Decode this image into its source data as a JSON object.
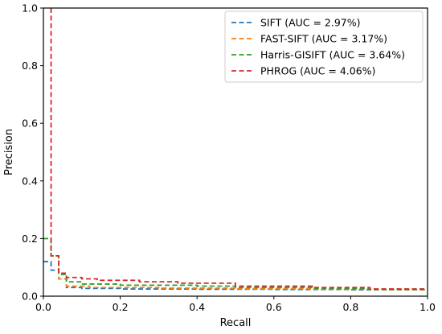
{
  "chart_data": {
    "type": "line",
    "title": "",
    "xlabel": "Recall",
    "ylabel": "Precision",
    "xlim": [
      0.0,
      1.0
    ],
    "ylim": [
      0.0,
      1.0
    ],
    "xticks": [
      "0.0",
      "0.2",
      "0.4",
      "0.6",
      "0.8",
      "1.0"
    ],
    "yticks": [
      "0.0",
      "0.2",
      "0.4",
      "0.6",
      "0.8",
      "1.0"
    ],
    "grid": false,
    "legend_position": "top-right",
    "line_style": "dashed",
    "series": [
      {
        "name": "SIFT (AUC = 2.97%)",
        "color": "#1f77b4",
        "points": [
          [
            0.0,
            0.12
          ],
          [
            0.02,
            0.12
          ],
          [
            0.02,
            0.09
          ],
          [
            0.04,
            0.09
          ],
          [
            0.04,
            0.06
          ],
          [
            0.06,
            0.06
          ],
          [
            0.06,
            0.03
          ],
          [
            0.1,
            0.03
          ],
          [
            0.1,
            0.027
          ],
          [
            0.2,
            0.027
          ],
          [
            0.2,
            0.025
          ],
          [
            0.4,
            0.025
          ],
          [
            0.4,
            0.024
          ],
          [
            0.6,
            0.024
          ],
          [
            0.6,
            0.023
          ],
          [
            0.8,
            0.023
          ],
          [
            0.8,
            0.022
          ],
          [
            1.0,
            0.022
          ]
        ]
      },
      {
        "name": "FAST-SIFT (AUC = 3.17%)",
        "color": "#ff7f0e",
        "points": [
          [
            0.0,
            0.2
          ],
          [
            0.02,
            0.2
          ],
          [
            0.02,
            0.14
          ],
          [
            0.04,
            0.14
          ],
          [
            0.04,
            0.06
          ],
          [
            0.06,
            0.06
          ],
          [
            0.06,
            0.035
          ],
          [
            0.12,
            0.035
          ],
          [
            0.12,
            0.03
          ],
          [
            0.3,
            0.03
          ],
          [
            0.3,
            0.028
          ],
          [
            0.5,
            0.028
          ],
          [
            0.5,
            0.026
          ],
          [
            0.7,
            0.026
          ],
          [
            0.7,
            0.024
          ],
          [
            0.85,
            0.024
          ],
          [
            0.85,
            0.022
          ],
          [
            1.0,
            0.022
          ]
        ]
      },
      {
        "name": "Harris-GISIFT (AUC = 3.64%)",
        "color": "#2ca02c",
        "points": [
          [
            0.0,
            0.2
          ],
          [
            0.02,
            0.2
          ],
          [
            0.02,
            0.14
          ],
          [
            0.04,
            0.14
          ],
          [
            0.04,
            0.075
          ],
          [
            0.06,
            0.075
          ],
          [
            0.06,
            0.05
          ],
          [
            0.1,
            0.05
          ],
          [
            0.1,
            0.042
          ],
          [
            0.2,
            0.042
          ],
          [
            0.2,
            0.038
          ],
          [
            0.4,
            0.038
          ],
          [
            0.4,
            0.035
          ],
          [
            0.5,
            0.035
          ],
          [
            0.5,
            0.03
          ],
          [
            0.7,
            0.03
          ],
          [
            0.7,
            0.026
          ],
          [
            0.85,
            0.026
          ],
          [
            0.85,
            0.023
          ],
          [
            1.0,
            0.023
          ]
        ]
      },
      {
        "name": "PHROG (AUC = 4.06%)",
        "color": "#d62728",
        "points": [
          [
            0.02,
            1.0
          ],
          [
            0.02,
            0.14
          ],
          [
            0.04,
            0.14
          ],
          [
            0.04,
            0.08
          ],
          [
            0.06,
            0.08
          ],
          [
            0.06,
            0.065
          ],
          [
            0.1,
            0.065
          ],
          [
            0.1,
            0.06
          ],
          [
            0.14,
            0.06
          ],
          [
            0.14,
            0.055
          ],
          [
            0.25,
            0.055
          ],
          [
            0.25,
            0.05
          ],
          [
            0.35,
            0.05
          ],
          [
            0.35,
            0.045
          ],
          [
            0.5,
            0.045
          ],
          [
            0.5,
            0.035
          ],
          [
            0.7,
            0.035
          ],
          [
            0.7,
            0.03
          ],
          [
            0.85,
            0.03
          ],
          [
            0.85,
            0.025
          ],
          [
            1.0,
            0.025
          ]
        ]
      }
    ]
  }
}
